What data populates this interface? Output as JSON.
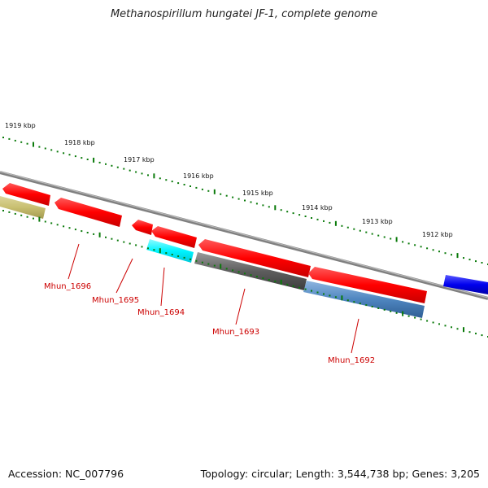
{
  "title": "Methanospirillum hungatei JF-1, complete genome",
  "footer": {
    "accession": "Accession: NC_007796",
    "stats": "Topology: circular; Length: 3,544,738 bp; Genes: 3,205"
  },
  "kbp_labels": [
    "1919 kbp",
    "1918 kbp",
    "1917 kbp",
    "1916 kbp",
    "1915 kbp",
    "1914 kbp",
    "1913 kbp",
    "1912 kbp"
  ],
  "gene_labels": [
    "Mhun_1696",
    "Mhun_1695",
    "Mhun_1694",
    "Mhun_1693",
    "Mhun_1692"
  ],
  "colors": {
    "tick_green": "#0a7a0a",
    "backbone": "#808080",
    "gene_red": "#ff0000",
    "gene_olive": "#c8bf70",
    "gene_cyan": "#00ffff",
    "gene_gray": "#606060",
    "gene_steel": "#4f86c0",
    "gene_blue": "#0000ee",
    "label_red": "#cc0000"
  }
}
